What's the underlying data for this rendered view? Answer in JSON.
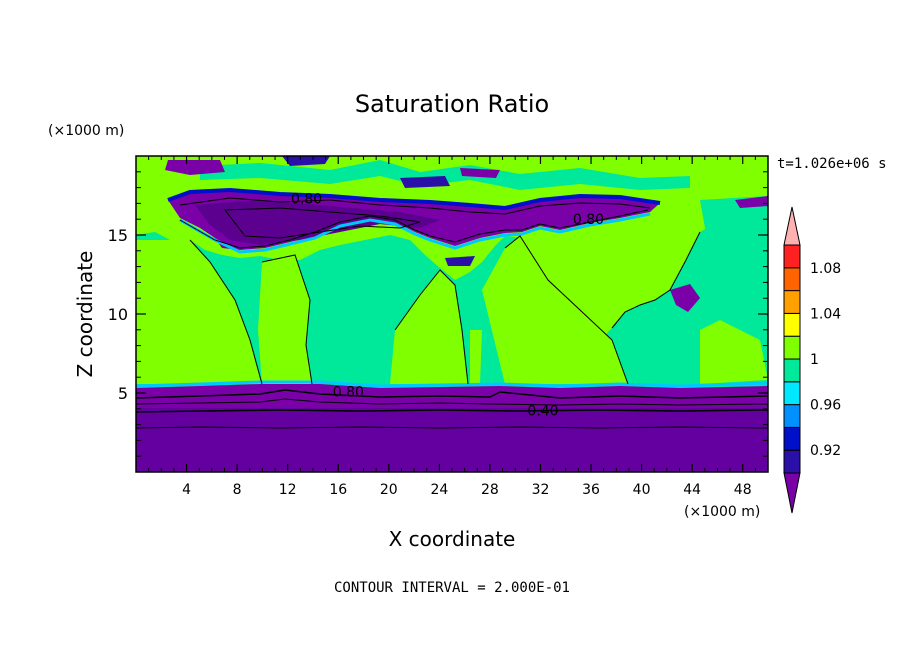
{
  "chart_data": {
    "type": "heatmap",
    "title": "Saturation Ratio",
    "xlabel": "X coordinate",
    "ylabel": "Z coordinate",
    "x_unit": "(×1000 m)",
    "y_unit": "(×1000 m)",
    "xlim": [
      0,
      50
    ],
    "ylim": [
      0,
      20
    ],
    "x_ticks": [
      4,
      8,
      12,
      16,
      20,
      24,
      28,
      32,
      36,
      40,
      44,
      48
    ],
    "y_ticks": [
      5,
      10,
      15
    ],
    "time_label": "t=1.026e+06 s",
    "footer": "CONTOUR INTERVAL = 2.000E-01",
    "contour_labels": [
      {
        "text": "0.80",
        "x": 13.5,
        "z": 17.3
      },
      {
        "text": "0.80",
        "x": 35.8,
        "z": 16.0
      },
      {
        "text": "0.80",
        "x": 16.8,
        "z": 5.1
      },
      {
        "text": "0.40",
        "x": 32.2,
        "z": 3.9
      }
    ],
    "colorbar": {
      "levels": [
        0.92,
        0.94,
        0.96,
        0.98,
        1.0,
        1.02,
        1.04,
        1.06,
        1.08,
        1.1
      ],
      "tick_labels": [
        "1.08",
        "1.04",
        "1",
        "0.96",
        "0.92"
      ],
      "colors": [
        "#7a00a8",
        "#2a10a8",
        "#0010c8",
        "#0090ff",
        "#00e8ff",
        "#00e89a",
        "#80ff00",
        "#ffff00",
        "#ffa000",
        "#ff6400",
        "#ff2020",
        "#ffb0b0"
      ]
    }
  }
}
